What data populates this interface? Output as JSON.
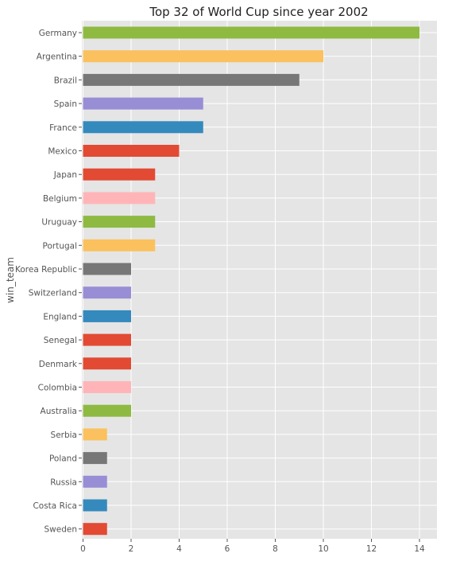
{
  "chart_data": {
    "type": "bar",
    "orientation": "horizontal",
    "title": "Top 32 of World Cup since year 2002",
    "xlabel": "",
    "ylabel": "win_team",
    "xlim": [
      0,
      14.7
    ],
    "xticks": [
      "0",
      "2",
      "4",
      "6",
      "8",
      "10",
      "12",
      "14"
    ],
    "grid": true,
    "background": "#e5e5e5",
    "categories": [
      "Germany",
      "Argentina",
      "Brazil",
      "Spain",
      "France",
      "Mexico",
      "Japan",
      "Belgium",
      "Uruguay",
      "Portugal",
      "Korea Republic",
      "Switzerland",
      "England",
      "Senegal",
      "Denmark",
      "Colombia",
      "Australia",
      "Serbia",
      "Poland",
      "Russia",
      "Costa Rica",
      "Sweden"
    ],
    "values": [
      14,
      10,
      9,
      5,
      5,
      4,
      3,
      3,
      3,
      3,
      2,
      2,
      2,
      2,
      2,
      2,
      2,
      1,
      1,
      1,
      1,
      1
    ],
    "colors": [
      "#8eba42",
      "#fbc15e",
      "#777777",
      "#988ed5",
      "#348abd",
      "#e24a33",
      "#e24a33",
      "#ffb5b8",
      "#8eba42",
      "#fbc15e",
      "#777777",
      "#988ed5",
      "#348abd",
      "#e24a33",
      "#e24a33",
      "#ffb5b8",
      "#8eba42",
      "#fbc15e",
      "#777777",
      "#988ed5",
      "#348abd",
      "#e24a33"
    ]
  }
}
